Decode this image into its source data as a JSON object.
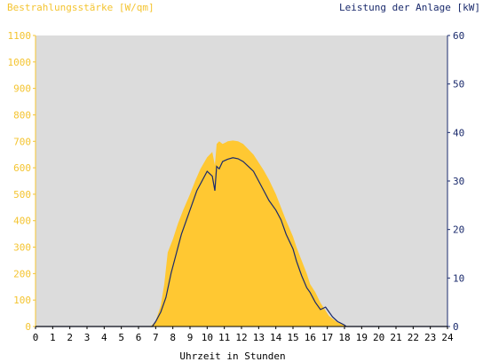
{
  "colors": {
    "background": "#dcdcdc",
    "irradiance_fill": "#ffc832",
    "power_line": "#1a2a6c",
    "left_axis": "#f4c430",
    "right_axis": "#1a2a6c"
  },
  "chart_data": {
    "type": "area",
    "left_axis_label": "Bestrahlungsstärke [W/qm]",
    "right_axis_label": "Leistung der Anlage [kW]",
    "xlabel": "Uhrzeit in Stunden",
    "xlim": [
      0,
      24
    ],
    "ylim_left": [
      0,
      1100
    ],
    "ylim_right": [
      0,
      60
    ],
    "x_ticks": [
      "0",
      "1",
      "2",
      "3",
      "4",
      "5",
      "6",
      "7",
      "8",
      "9",
      "10",
      "11",
      "12",
      "13",
      "14",
      "15",
      "16",
      "17",
      "18",
      "19",
      "20",
      "21",
      "22",
      "23",
      "24"
    ],
    "y_left_ticks": [
      "0",
      "100",
      "200",
      "300",
      "400",
      "500",
      "600",
      "700",
      "800",
      "900",
      "1000",
      "1100"
    ],
    "y_right_ticks": [
      "0",
      "10",
      "20",
      "30",
      "40",
      "50",
      "60"
    ],
    "grid": false,
    "series": [
      {
        "kind": "area",
        "axis": "left",
        "x": [
          0,
          6.7,
          7.0,
          7.3,
          7.5,
          7.7,
          8.0,
          8.3,
          8.6,
          9.0,
          9.3,
          9.6,
          10.0,
          10.3,
          10.45,
          10.55,
          10.7,
          10.9,
          11.2,
          11.5,
          11.8,
          12.1,
          12.4,
          12.7,
          13.0,
          13.3,
          13.6,
          14.0,
          14.3,
          14.6,
          15.0,
          15.2,
          15.5,
          15.8,
          16.0,
          16.3,
          16.6,
          16.9,
          17.1,
          17.3,
          17.6,
          18.0,
          18.1,
          24
        ],
        "y": [
          0,
          0,
          20,
          80,
          160,
          280,
          330,
          390,
          440,
          500,
          550,
          595,
          640,
          660,
          610,
          690,
          700,
          690,
          700,
          703,
          700,
          690,
          670,
          650,
          620,
          590,
          555,
          500,
          450,
          400,
          340,
          300,
          250,
          200,
          160,
          130,
          90,
          60,
          40,
          30,
          15,
          5,
          0,
          0
        ]
      },
      {
        "kind": "line",
        "axis": "right",
        "x": [
          0,
          6.8,
          7.0,
          7.3,
          7.6,
          7.9,
          8.2,
          8.5,
          8.8,
          9.1,
          9.4,
          9.7,
          10.0,
          10.3,
          10.45,
          10.55,
          10.7,
          10.9,
          11.2,
          11.5,
          11.8,
          12.1,
          12.4,
          12.7,
          13.0,
          13.3,
          13.6,
          14.0,
          14.3,
          14.6,
          15.0,
          15.2,
          15.5,
          15.8,
          16.0,
          16.3,
          16.6,
          16.9,
          17.1,
          17.3,
          17.6,
          18.0,
          18.1,
          24
        ],
        "y": [
          0,
          0,
          1,
          3,
          6,
          11,
          15,
          19,
          22,
          25,
          28,
          30,
          32,
          31,
          28,
          33,
          32.5,
          34,
          34.5,
          34.8,
          34.6,
          34,
          33,
          32,
          30,
          28,
          26,
          24,
          22,
          19,
          16,
          13.5,
          10.5,
          8,
          7,
          5,
          3.5,
          4,
          3,
          2,
          1,
          0.3,
          0,
          0
        ]
      }
    ]
  }
}
